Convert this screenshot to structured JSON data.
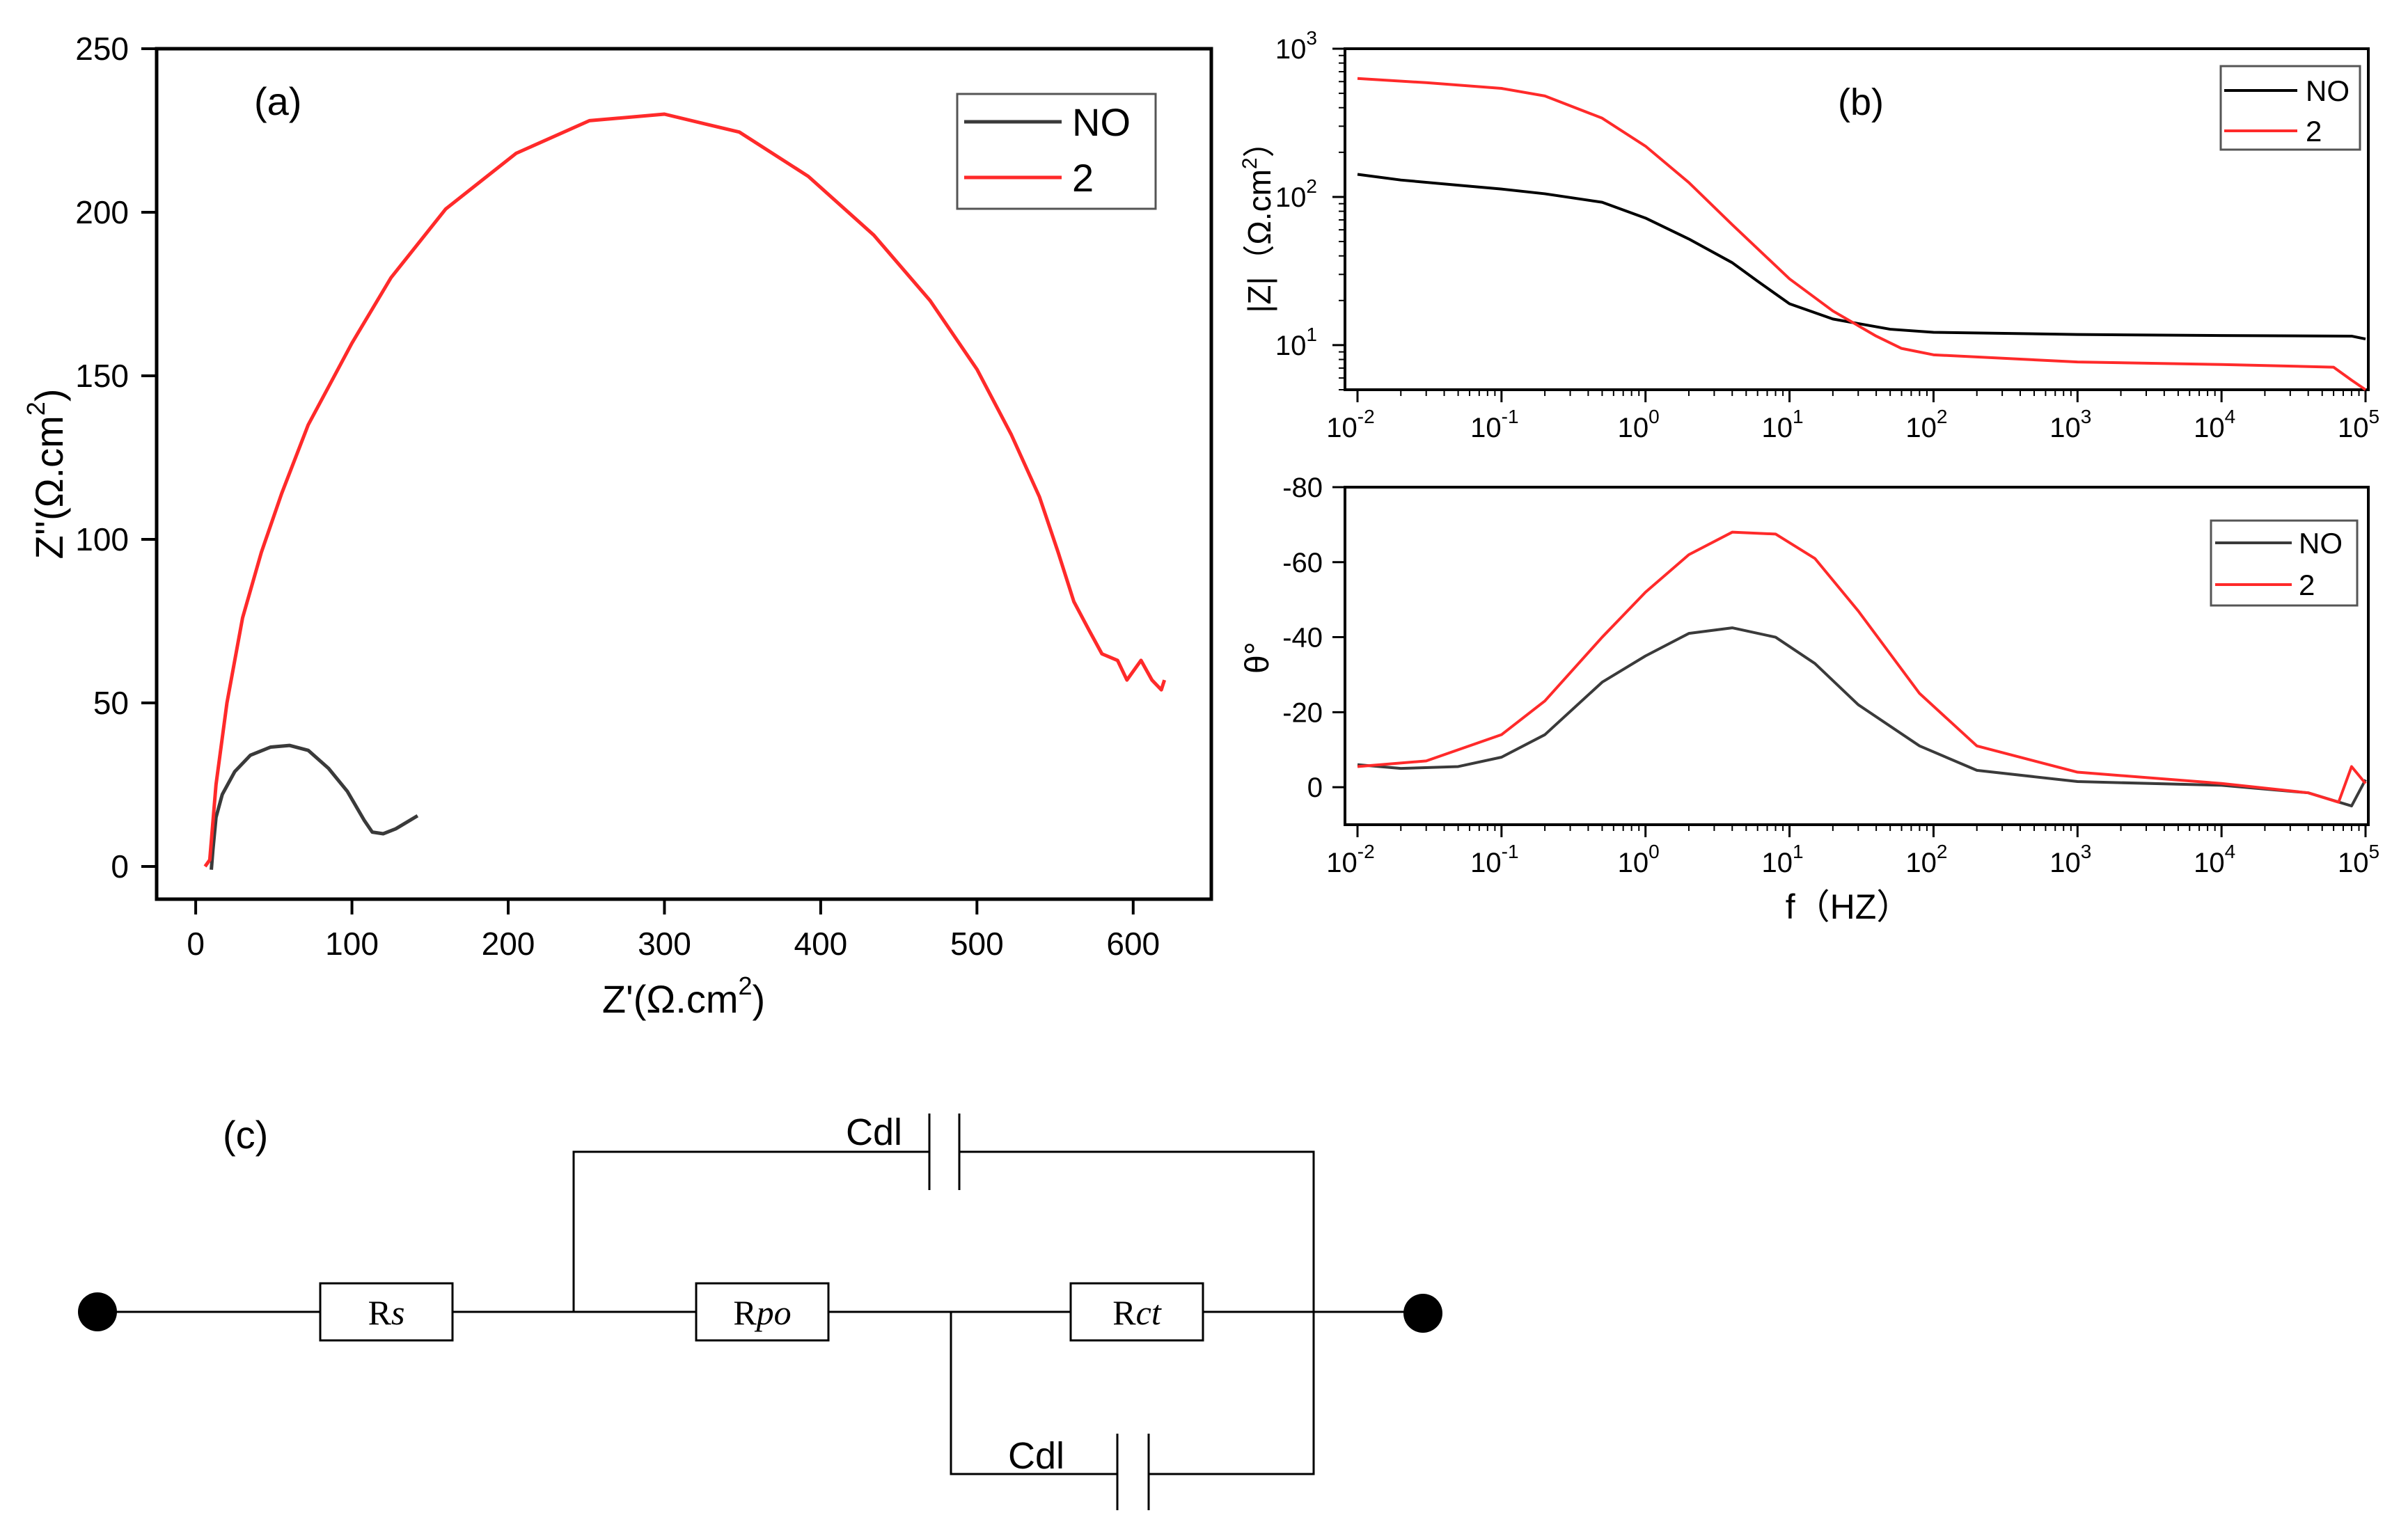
{
  "colors": {
    "no": "#3a3a3a",
    "no_b": "#000000",
    "two": "#ff2a2a",
    "axis": "#000000"
  },
  "panel_a": {
    "label": "(a)",
    "xlabel_main": "Z'(Ω.cm",
    "xlabel_sup": "2",
    "xlabel_close": ")",
    "ylabel_main": "Z''(Ω.cm",
    "ylabel_sup": "2",
    "ylabel_close": ")",
    "xticks": [
      "0",
      "100",
      "200",
      "300",
      "400",
      "500",
      "600"
    ],
    "yticks": [
      "0",
      "50",
      "100",
      "150",
      "200",
      "250"
    ],
    "legend": [
      "NO",
      "2"
    ]
  },
  "panel_b_top": {
    "label": "(b)",
    "ylabel_main": "|Z|（Ω.cm",
    "ylabel_sup": "2",
    "ylabel_close": "）",
    "yticks": [
      {
        "base": "10",
        "exp": "1"
      },
      {
        "base": "10",
        "exp": "2"
      },
      {
        "base": "10",
        "exp": "3"
      }
    ],
    "xticks": [
      {
        "base": "10",
        "exp": "-2"
      },
      {
        "base": "10",
        "exp": "-1"
      },
      {
        "base": "10",
        "exp": "0"
      },
      {
        "base": "10",
        "exp": "1"
      },
      {
        "base": "10",
        "exp": "2"
      },
      {
        "base": "10",
        "exp": "3"
      },
      {
        "base": "10",
        "exp": "4"
      },
      {
        "base": "10",
        "exp": "5"
      }
    ],
    "legend": [
      "NO",
      "2"
    ]
  },
  "panel_b_bottom": {
    "ylabel": "θ°",
    "xlabel": "f（HZ）",
    "yticks": [
      "-80",
      "-60",
      "-40",
      "-20",
      "0"
    ],
    "xticks": [
      {
        "base": "10",
        "exp": "-2"
      },
      {
        "base": "10",
        "exp": "-1"
      },
      {
        "base": "10",
        "exp": "0"
      },
      {
        "base": "10",
        "exp": "1"
      },
      {
        "base": "10",
        "exp": "2"
      },
      {
        "base": "10",
        "exp": "3"
      },
      {
        "base": "10",
        "exp": "4"
      },
      {
        "base": "10",
        "exp": "5"
      }
    ],
    "legend": [
      "NO",
      "2"
    ]
  },
  "panel_c": {
    "label": "(c)",
    "cdl_top": "Cdl",
    "cdl_bottom": "Cdl",
    "rs": {
      "r": "R",
      "sub": "s"
    },
    "rpo": {
      "r": "R",
      "sub": "po"
    },
    "rct": {
      "r": "R",
      "sub": "ct"
    }
  },
  "chart_data": [
    {
      "type": "line",
      "panel": "(a)",
      "xlim": [
        -25,
        650
      ],
      "ylim": [
        -10,
        250
      ],
      "series": [
        {
          "name": "NO",
          "x": [
            10,
            11,
            13,
            17,
            25,
            35,
            48,
            60,
            72,
            85,
            97,
            108,
            113,
            120,
            128,
            135,
            142
          ],
          "y": [
            -1,
            5,
            15,
            22,
            29,
            34,
            36.5,
            37,
            35.5,
            30,
            23,
            14,
            10.5,
            10,
            11.5,
            13.5,
            15.5
          ]
        },
        {
          "name": "2",
          "x": [
            6,
            9,
            13,
            20,
            30,
            42,
            55,
            72,
            100,
            125,
            160,
            205,
            252,
            300,
            348,
            392,
            434,
            470,
            500,
            522,
            540,
            552,
            562,
            572,
            580,
            590,
            596,
            605,
            612,
            618,
            620
          ],
          "y": [
            0,
            2,
            25,
            50,
            76,
            96,
            114,
            135,
            160,
            180,
            201,
            218,
            228,
            230,
            224.5,
            211,
            193,
            173,
            152,
            132,
            113,
            96,
            81,
            72,
            65,
            63,
            57,
            63,
            57,
            54,
            57
          ]
        }
      ]
    },
    {
      "type": "line",
      "panel": "(b) top",
      "xscale": "log",
      "yscale": "log",
      "xlim": [
        0.01,
        100000
      ],
      "ylim": [
        5,
        1000
      ],
      "series": [
        {
          "name": "NO",
          "x": [
            0.01,
            0.02,
            0.05,
            0.1,
            0.2,
            0.5,
            1,
            2,
            4,
            6,
            10,
            20,
            50,
            100,
            1000,
            10000,
            80000,
            100000
          ],
          "y": [
            142,
            130,
            120,
            113,
            105,
            92,
            72,
            52,
            36,
            27,
            19,
            15,
            12.8,
            12.2,
            11.8,
            11.6,
            11.5,
            11
          ]
        },
        {
          "name": "2",
          "x": [
            0.01,
            0.03,
            0.1,
            0.2,
            0.5,
            1,
            2,
            4,
            10,
            20,
            40,
            60,
            100,
            1000,
            10000,
            60000,
            80000,
            100000
          ],
          "y": [
            630,
            590,
            540,
            480,
            340,
            220,
            125,
            65,
            28,
            17,
            11.5,
            9.5,
            8.6,
            7.7,
            7.4,
            7.1,
            5.8,
            5
          ]
        }
      ]
    },
    {
      "type": "line",
      "panel": "(b) bottom",
      "xscale": "log",
      "xlim": [
        0.01,
        100000
      ],
      "ylim": [
        -80,
        10
      ],
      "yaxis_inverted": true,
      "series": [
        {
          "name": "NO",
          "x": [
            0.01,
            0.02,
            0.05,
            0.1,
            0.2,
            0.5,
            1,
            2,
            4,
            8,
            15,
            30,
            80,
            200,
            1000,
            10000,
            40000,
            80000,
            100000
          ],
          "y": [
            -6,
            -5,
            -5.5,
            -8,
            -14,
            -28,
            -35,
            -41,
            -42.5,
            -40,
            -33,
            -22,
            -11,
            -4.5,
            -1.5,
            -0.5,
            1.5,
            5,
            -2
          ]
        },
        {
          "name": "2",
          "x": [
            0.01,
            0.03,
            0.1,
            0.2,
            0.5,
            1,
            2,
            4,
            8,
            15,
            30,
            80,
            200,
            1000,
            10000,
            40000,
            65000,
            80000,
            100000
          ],
          "y": [
            -5.5,
            -7,
            -14,
            -23,
            -40,
            -52,
            -62,
            -68,
            -67.5,
            -61,
            -47,
            -25,
            -11,
            -4,
            -1,
            1.5,
            4,
            -5.5,
            -1
          ]
        }
      ]
    }
  ]
}
